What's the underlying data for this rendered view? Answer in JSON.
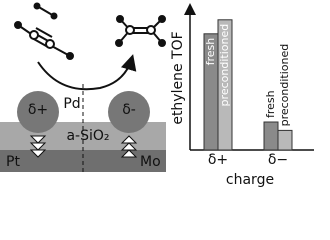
{
  "diagram": {
    "labels": {
      "left_charge": "δ+",
      "metal": "Pd",
      "right_charge": "δ-",
      "oxide": "a-SiO₂",
      "left_substrate": "Pt",
      "right_substrate": "Mo"
    }
  },
  "chart_data": {
    "type": "bar",
    "ylabel": "ethylene TOF",
    "xlabel": "charge",
    "categories": [
      "δ+",
      "δ−"
    ],
    "series": [
      {
        "name": "fresh",
        "color": "#8a8a8a",
        "values": [
          8.3,
          2.0
        ]
      },
      {
        "name": "preconditioned",
        "color": "#b9b9b9",
        "values": [
          9.3,
          1.4
        ]
      }
    ],
    "ylim": [
      0,
      10
    ]
  }
}
